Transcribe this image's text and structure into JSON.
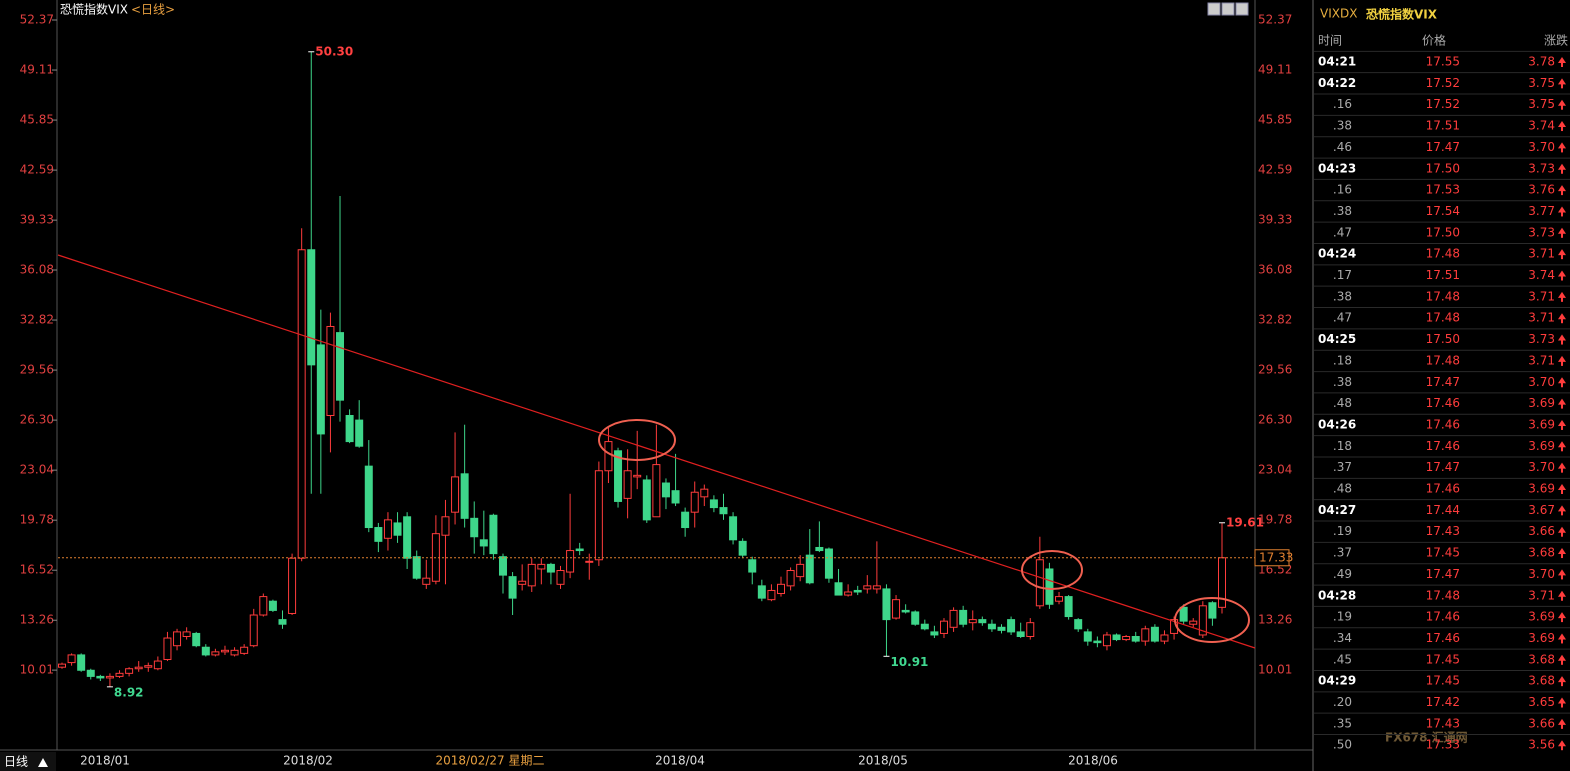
{
  "title": "恐慌指数VIX",
  "title_period": "<日线>",
  "chart_data": {
    "type": "candlestick",
    "candles": [
      [
        10.2,
        10.5,
        10.1,
        10.4
      ],
      [
        10.5,
        11.1,
        10.3,
        11.0
      ],
      [
        11.0,
        11.1,
        9.9,
        10.0
      ],
      [
        10.0,
        10.1,
        9.4,
        9.6
      ],
      [
        9.6,
        9.7,
        9.3,
        9.5
      ],
      [
        9.5,
        9.8,
        8.92,
        9.6
      ],
      [
        9.6,
        10.0,
        9.5,
        9.8
      ],
      [
        9.8,
        10.2,
        9.6,
        10.1
      ],
      [
        10.1,
        10.6,
        9.9,
        10.2
      ],
      [
        10.2,
        10.5,
        9.9,
        10.3
      ],
      [
        10.1,
        10.9,
        10.0,
        10.6
      ],
      [
        10.7,
        12.5,
        10.6,
        12.1
      ],
      [
        11.6,
        12.7,
        11.3,
        12.5
      ],
      [
        12.2,
        12.8,
        12.0,
        12.5
      ],
      [
        12.4,
        12.5,
        11.5,
        11.6
      ],
      [
        11.5,
        11.7,
        10.9,
        11.0
      ],
      [
        11.0,
        11.4,
        10.9,
        11.2
      ],
      [
        11.2,
        11.6,
        11.0,
        11.3
      ],
      [
        11.0,
        11.5,
        10.9,
        11.3
      ],
      [
        11.1,
        11.7,
        11.0,
        11.5
      ],
      [
        11.6,
        14.0,
        11.5,
        13.6
      ],
      [
        13.6,
        15.0,
        13.5,
        14.8
      ],
      [
        14.5,
        14.6,
        13.8,
        13.9
      ],
      [
        13.3,
        13.9,
        12.7,
        13.0
      ],
      [
        13.7,
        17.6,
        13.6,
        17.3
      ],
      [
        17.3,
        38.8,
        17.1,
        37.4
      ],
      [
        37.4,
        50.3,
        21.5,
        29.9
      ],
      [
        31.2,
        33.5,
        21.5,
        25.4
      ],
      [
        26.6,
        33.3,
        24.2,
        32.4
      ],
      [
        32.0,
        40.9,
        26.2,
        27.6
      ],
      [
        26.6,
        27.0,
        24.8,
        24.9
      ],
      [
        26.3,
        27.6,
        24.5,
        24.6
      ],
      [
        23.3,
        25.0,
        19.0,
        19.3
      ],
      [
        19.3,
        19.6,
        17.7,
        18.4
      ],
      [
        18.6,
        20.3,
        17.8,
        19.8
      ],
      [
        19.6,
        20.3,
        18.3,
        18.8
      ],
      [
        20.0,
        20.3,
        16.6,
        17.3
      ],
      [
        17.4,
        17.8,
        15.9,
        16.0
      ],
      [
        15.6,
        17.2,
        15.3,
        16.0
      ],
      [
        15.8,
        20.1,
        15.6,
        18.9
      ],
      [
        18.8,
        21.1,
        15.6,
        20.0
      ],
      [
        20.3,
        25.5,
        19.5,
        22.6
      ],
      [
        22.8,
        26.0,
        19.3,
        19.9
      ],
      [
        19.9,
        21.0,
        17.6,
        18.7
      ],
      [
        18.5,
        20.4,
        17.5,
        18.1
      ],
      [
        20.1,
        20.2,
        17.2,
        17.6
      ],
      [
        17.4,
        17.6,
        15.0,
        16.2
      ],
      [
        16.1,
        16.4,
        13.6,
        14.7
      ],
      [
        15.6,
        16.9,
        15.2,
        15.8
      ],
      [
        15.5,
        17.3,
        15.1,
        16.9
      ],
      [
        16.6,
        17.3,
        15.6,
        16.9
      ],
      [
        16.9,
        17.0,
        15.6,
        16.4
      ],
      [
        15.6,
        16.8,
        15.3,
        16.5
      ],
      [
        16.4,
        21.5,
        16.0,
        17.8
      ],
      [
        17.9,
        18.3,
        17.5,
        17.8
      ],
      [
        17.1,
        17.6,
        15.9,
        17.1
      ],
      [
        17.2,
        23.6,
        16.8,
        23.0
      ],
      [
        23.0,
        25.8,
        22.2,
        24.9
      ],
      [
        24.3,
        24.5,
        20.6,
        21.0
      ],
      [
        21.2,
        24.4,
        19.9,
        23.0
      ],
      [
        22.6,
        25.6,
        21.8,
        22.7
      ],
      [
        22.4,
        22.7,
        19.6,
        19.8
      ],
      [
        20.0,
        26.0,
        20.0,
        23.4
      ],
      [
        22.2,
        22.5,
        20.5,
        21.3
      ],
      [
        21.7,
        24.1,
        20.7,
        20.9
      ],
      [
        20.3,
        20.6,
        18.7,
        19.3
      ],
      [
        20.3,
        22.3,
        19.3,
        21.6
      ],
      [
        21.3,
        22.1,
        20.7,
        21.8
      ],
      [
        21.1,
        21.4,
        20.3,
        20.6
      ],
      [
        20.6,
        21.5,
        19.8,
        20.2
      ],
      [
        20.0,
        20.3,
        18.2,
        18.5
      ],
      [
        18.4,
        18.6,
        17.3,
        17.5
      ],
      [
        17.2,
        17.4,
        15.6,
        16.4
      ],
      [
        15.5,
        15.9,
        14.5,
        14.7
      ],
      [
        14.6,
        15.6,
        14.5,
        15.2
      ],
      [
        15.0,
        16.1,
        14.8,
        15.6
      ],
      [
        15.5,
        16.7,
        15.2,
        16.5
      ],
      [
        16.1,
        17.5,
        15.8,
        16.9
      ],
      [
        17.5,
        19.2,
        15.6,
        15.7
      ],
      [
        18.0,
        19.7,
        17.7,
        17.8
      ],
      [
        17.9,
        18.0,
        15.7,
        16.0
      ],
      [
        15.7,
        16.6,
        14.9,
        14.9
      ],
      [
        14.9,
        15.6,
        14.8,
        15.1
      ],
      [
        15.2,
        15.5,
        14.9,
        15.1
      ],
      [
        15.3,
        16.2,
        15.0,
        15.5
      ],
      [
        15.3,
        18.4,
        15.0,
        15.5
      ],
      [
        15.3,
        15.6,
        10.91,
        13.3
      ],
      [
        13.4,
        14.9,
        13.3,
        14.6
      ],
      [
        13.9,
        14.3,
        13.7,
        13.8
      ],
      [
        13.8,
        13.9,
        12.9,
        13.0
      ],
      [
        13.0,
        13.3,
        12.6,
        12.7
      ],
      [
        12.5,
        12.9,
        12.1,
        12.3
      ],
      [
        12.4,
        13.4,
        12.1,
        13.2
      ],
      [
        12.8,
        14.1,
        12.5,
        13.9
      ],
      [
        13.9,
        14.2,
        12.8,
        13.0
      ],
      [
        13.1,
        13.9,
        12.6,
        13.3
      ],
      [
        13.3,
        13.5,
        12.9,
        13.1
      ],
      [
        13.0,
        13.3,
        12.5,
        12.7
      ],
      [
        12.8,
        13.0,
        12.4,
        12.6
      ],
      [
        13.3,
        13.5,
        12.3,
        12.5
      ],
      [
        12.5,
        13.1,
        12.1,
        12.2
      ],
      [
        12.2,
        13.4,
        12.0,
        13.1
      ],
      [
        14.2,
        18.7,
        14.0,
        17.2
      ],
      [
        16.6,
        17.0,
        14.0,
        14.3
      ],
      [
        14.5,
        15.1,
        14.3,
        14.8
      ],
      [
        14.8,
        14.9,
        13.3,
        13.5
      ],
      [
        13.3,
        13.4,
        12.5,
        12.7
      ],
      [
        12.5,
        12.7,
        11.6,
        11.9
      ],
      [
        11.9,
        12.2,
        11.5,
        11.8
      ],
      [
        11.6,
        12.5,
        11.3,
        12.3
      ],
      [
        12.3,
        12.4,
        11.9,
        12.0
      ],
      [
        12.0,
        12.3,
        11.9,
        12.2
      ],
      [
        12.2,
        12.5,
        11.8,
        11.9
      ],
      [
        11.9,
        12.9,
        11.6,
        12.7
      ],
      [
        12.8,
        13.0,
        11.8,
        11.9
      ],
      [
        11.9,
        12.6,
        11.7,
        12.3
      ],
      [
        12.4,
        13.5,
        12.0,
        13.3
      ],
      [
        14.1,
        14.3,
        13.0,
        13.2
      ],
      [
        13.0,
        13.4,
        12.8,
        13.2
      ],
      [
        12.3,
        14.5,
        12.1,
        14.2
      ],
      [
        14.4,
        14.5,
        12.9,
        13.4
      ],
      [
        14.1,
        19.61,
        13.7,
        17.33
      ]
    ],
    "up_color": "#ff3c3c",
    "down_color": "#3ed68a",
    "ylim": [
      5,
      52.37
    ],
    "yticks": [
      10.01,
      13.26,
      16.52,
      19.78,
      23.04,
      {
        "value": 26.3,
        "label": "26.30"
      },
      29.56,
      32.82,
      36.08,
      39.33,
      42.59,
      45.85,
      49.11,
      52.37
    ],
    "annotations": [
      {
        "value": 50.3,
        "label": "50.30"
      },
      {
        "value": 8.92,
        "label": "8.92"
      },
      {
        "value": 10.91,
        "label": "10.91"
      },
      {
        "value": 19.61,
        "label": "19.61"
      }
    ],
    "last_price": {
      "value": 17.33,
      "label": "17.33"
    },
    "xlabels": [
      "2018/01",
      "2018/02",
      "2018/04",
      "2018/05",
      "2018/06"
    ],
    "cursor_date": "2018/02/27 星期二"
  },
  "period_button": "日线",
  "quote_panel": {
    "code": "VIXDX",
    "name": "恐慌指数VIX",
    "columns": [
      "时间",
      "价格",
      "涨跌"
    ],
    "rows": [
      [
        "04:21",
        "17.55",
        "3.78"
      ],
      [
        "04:22",
        "17.52",
        "3.75"
      ],
      [
        ".16",
        "17.52",
        "3.75"
      ],
      [
        ".38",
        "17.51",
        "3.74"
      ],
      [
        ".46",
        "17.47",
        "3.70"
      ],
      [
        "04:23",
        "17.50",
        "3.73"
      ],
      [
        ".16",
        "17.53",
        "3.76"
      ],
      [
        ".38",
        "17.54",
        "3.77"
      ],
      [
        ".47",
        "17.50",
        "3.73"
      ],
      [
        "04:24",
        "17.48",
        "3.71"
      ],
      [
        ".17",
        "17.51",
        "3.74"
      ],
      [
        ".38",
        "17.48",
        "3.71"
      ],
      [
        ".47",
        "17.48",
        "3.71"
      ],
      [
        "04:25",
        "17.50",
        "3.73"
      ],
      [
        ".18",
        "17.48",
        "3.71"
      ],
      [
        ".38",
        "17.47",
        "3.70"
      ],
      [
        ".48",
        "17.46",
        "3.69"
      ],
      [
        "04:26",
        "17.46",
        "3.69"
      ],
      [
        ".18",
        "17.46",
        "3.69"
      ],
      [
        ".37",
        "17.47",
        "3.70"
      ],
      [
        ".48",
        "17.46",
        "3.69"
      ],
      [
        "04:27",
        "17.44",
        "3.67"
      ],
      [
        ".19",
        "17.43",
        "3.66"
      ],
      [
        ".37",
        "17.45",
        "3.68"
      ],
      [
        ".49",
        "17.47",
        "3.70"
      ],
      [
        "04:28",
        "17.48",
        "3.71"
      ],
      [
        ".19",
        "17.46",
        "3.69"
      ],
      [
        ".34",
        "17.46",
        "3.69"
      ],
      [
        ".45",
        "17.45",
        "3.68"
      ],
      [
        "04:29",
        "17.45",
        "3.68"
      ],
      [
        ".20",
        "17.42",
        "3.65"
      ],
      [
        ".35",
        "17.43",
        "3.66"
      ],
      [
        ".50",
        "17.33",
        "3.56"
      ]
    ]
  },
  "watermark": "FX678 汇通网"
}
